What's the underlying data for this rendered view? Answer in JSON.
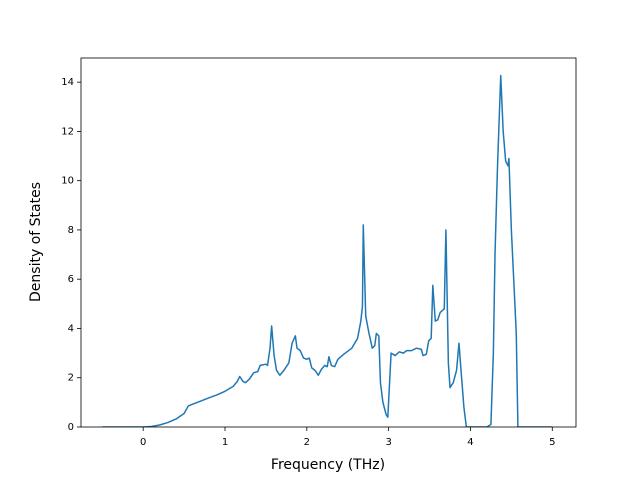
{
  "chart_data": {
    "type": "line",
    "x_label": "Frequency (THz)",
    "y_label": "Density of States",
    "xlim": [
      -0.76,
      5.29
    ],
    "ylim": [
      0,
      14.98
    ],
    "xticks": [
      0,
      1,
      2,
      3,
      4,
      5
    ],
    "yticks": [
      0,
      2,
      4,
      6,
      8,
      10,
      12,
      14
    ],
    "grid": false,
    "x": [
      -0.5,
      0,
      0.1,
      0.2,
      0.3,
      0.4,
      0.5,
      0.55,
      0.6,
      0.7,
      0.8,
      0.9,
      1.0,
      1.1,
      1.15,
      1.18,
      1.22,
      1.25,
      1.3,
      1.35,
      1.4,
      1.43,
      1.5,
      1.52,
      1.55,
      1.57,
      1.6,
      1.63,
      1.67,
      1.72,
      1.78,
      1.82,
      1.86,
      1.88,
      1.92,
      1.96,
      2.0,
      2.03,
      2.06,
      2.1,
      2.14,
      2.18,
      2.22,
      2.25,
      2.27,
      2.3,
      2.34,
      2.38,
      2.45,
      2.55,
      2.62,
      2.66,
      2.68,
      2.69,
      2.72,
      2.76,
      2.8,
      2.83,
      2.85,
      2.88,
      2.9,
      2.93,
      2.97,
      2.99,
      3.03,
      3.08,
      3.13,
      3.18,
      3.22,
      3.28,
      3.34,
      3.4,
      3.42,
      3.46,
      3.49,
      3.52,
      3.54,
      3.57,
      3.6,
      3.63,
      3.68,
      3.7,
      3.73,
      3.75,
      3.79,
      3.83,
      3.86,
      3.88,
      3.92,
      3.95,
      4.2,
      4.25,
      4.28,
      4.3,
      4.33,
      4.37,
      4.4,
      4.43,
      4.46,
      4.47,
      4.5,
      4.56,
      4.58,
      5.0
    ],
    "series": [
      {
        "color": "#1f77b4",
        "values": [
          0,
          0,
          0.02,
          0.08,
          0.18,
          0.32,
          0.55,
          0.85,
          0.92,
          1.05,
          1.18,
          1.3,
          1.45,
          1.65,
          1.85,
          2.05,
          1.85,
          1.8,
          1.95,
          2.2,
          2.25,
          2.5,
          2.55,
          2.5,
          3.2,
          4.1,
          2.9,
          2.3,
          2.1,
          2.3,
          2.6,
          3.4,
          3.7,
          3.2,
          3.1,
          2.8,
          2.75,
          2.8,
          2.4,
          2.3,
          2.1,
          2.35,
          2.5,
          2.45,
          2.85,
          2.5,
          2.45,
          2.75,
          2.95,
          3.2,
          3.6,
          4.3,
          4.9,
          8.2,
          4.5,
          3.8,
          3.2,
          3.3,
          3.8,
          3.7,
          1.8,
          1.0,
          0.5,
          0.4,
          3.0,
          2.9,
          3.05,
          3.0,
          3.1,
          3.1,
          3.2,
          3.15,
          2.9,
          2.95,
          3.5,
          3.6,
          5.75,
          4.3,
          4.35,
          4.65,
          4.8,
          8.0,
          2.6,
          1.6,
          1.8,
          2.3,
          3.4,
          2.5,
          0.8,
          0,
          0,
          0.1,
          3.0,
          7.0,
          10.5,
          14.27,
          12.0,
          10.8,
          10.6,
          10.9,
          8.0,
          3.8,
          0,
          0
        ]
      }
    ]
  }
}
